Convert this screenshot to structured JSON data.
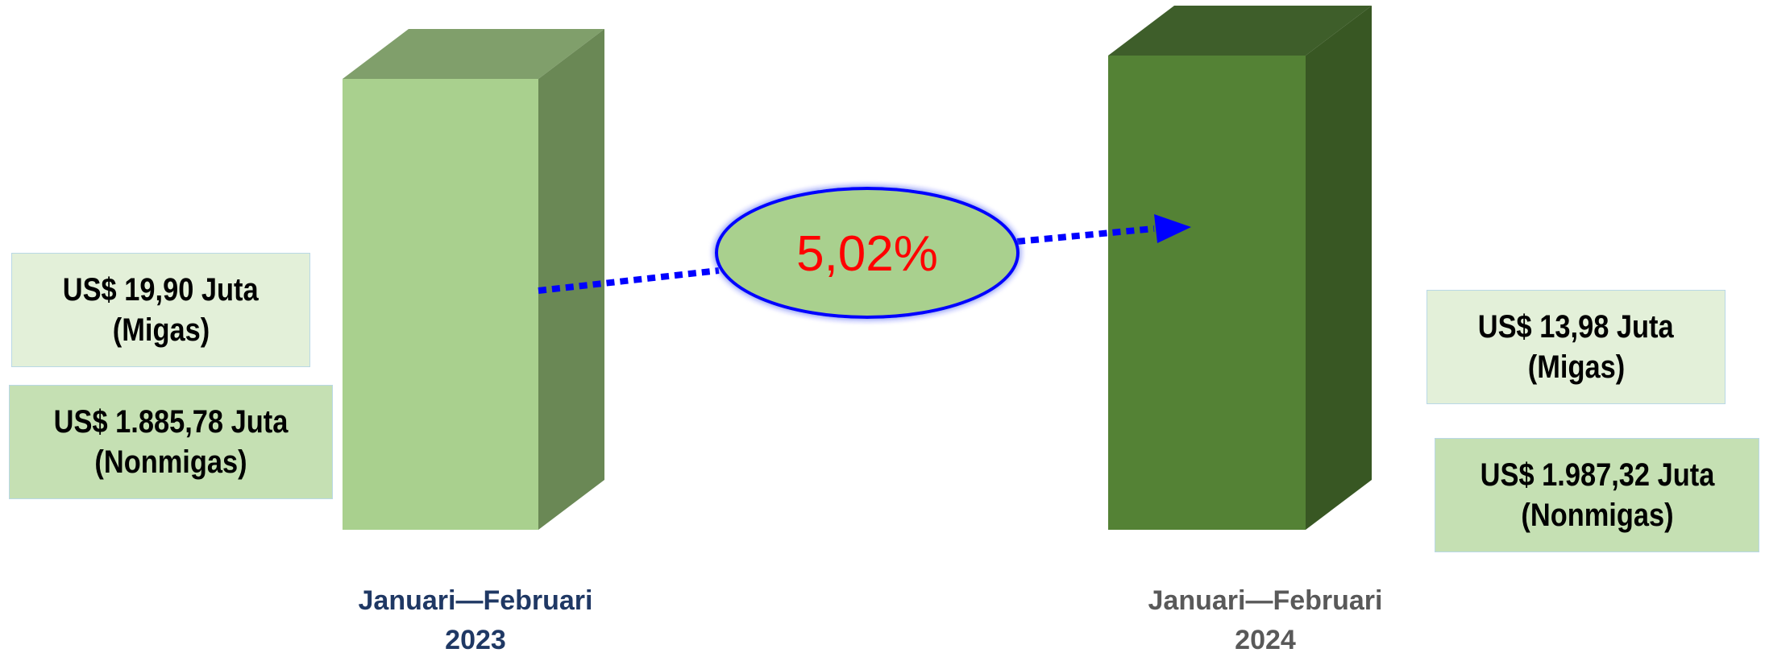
{
  "chart_data": {
    "type": "bar",
    "categories": [
      "Januari—Februari 2023",
      "Januari—Februari 2024"
    ],
    "change_label": "5,02%",
    "periods": [
      {
        "line1": "Januari—Februari",
        "line2": "2023",
        "color": "#1f3864",
        "migas": {
          "value": "US$ 19,90 Juta",
          "label": "(Migas)"
        },
        "nonmigas": {
          "value": "US$ 1.885,78 Juta",
          "label": "(Nonmigas)"
        },
        "bar": {
          "front": "#a9d08e",
          "side": "#6a8855",
          "top": "#809f6b"
        }
      },
      {
        "line1": "Januari—Februari",
        "line2": "2024",
        "color": "#595959",
        "migas": {
          "value": "US$ 13,98 Juta",
          "label": "(Migas)"
        },
        "nonmigas": {
          "value": "US$ 1.987,32 Juta",
          "label": "(Nonmigas)"
        },
        "bar": {
          "front": "#548235",
          "side": "#385723",
          "top": "#3e5e2a"
        }
      }
    ],
    "arrow_color": "#0000ff",
    "change_color": "#ff0000",
    "ellipse_fill": "#a9d08e"
  }
}
